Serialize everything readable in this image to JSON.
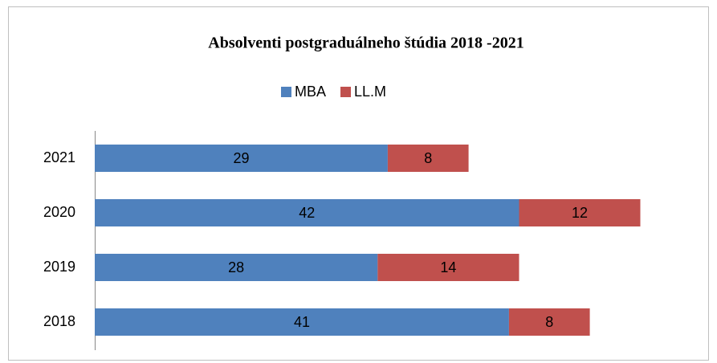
{
  "chart_data": {
    "type": "stacked-barh",
    "title": "Absolventi  postgraduálneho štúdia 2018 -2021",
    "categories": [
      "2018",
      "2019",
      "2020",
      "2021"
    ],
    "series": [
      {
        "name": "MBA",
        "color": "#4f81bd",
        "values": [
          41,
          28,
          42,
          29
        ]
      },
      {
        "name": "LL.M",
        "color": "#c0504d",
        "values": [
          8,
          14,
          12,
          8
        ]
      }
    ],
    "xlim": [
      0,
      60
    ],
    "legend": "top"
  }
}
